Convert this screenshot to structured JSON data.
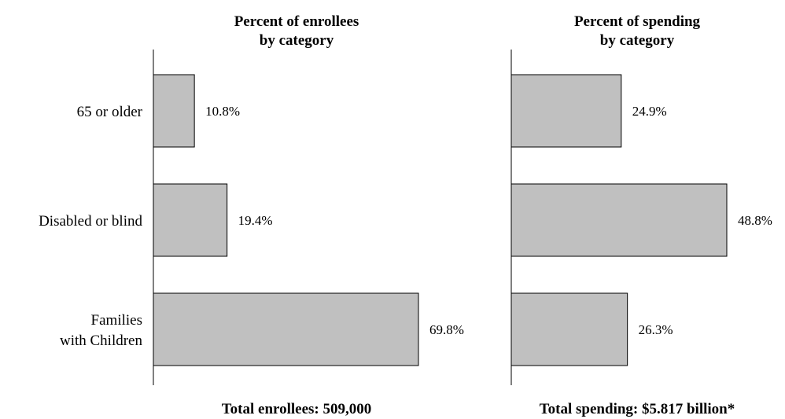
{
  "chart_data": [
    {
      "type": "bar",
      "orientation": "horizontal",
      "title_lines": [
        "Percent of enrollees",
        "by category"
      ],
      "categories": [
        [
          "65 or older"
        ],
        [
          "Disabled or blind"
        ],
        [
          "Families",
          "with Children"
        ]
      ],
      "values": [
        10.8,
        19.4,
        69.8
      ],
      "value_labels": [
        "10.8%",
        "19.4%",
        "69.8%"
      ],
      "footer": "Total enrollees: 509,000",
      "xlim": [
        0,
        80
      ]
    },
    {
      "type": "bar",
      "orientation": "horizontal",
      "title_lines": [
        "Percent of spending",
        "by category"
      ],
      "categories": [
        [
          "65 or older"
        ],
        [
          "Disabled or blind"
        ],
        [
          "Families",
          "with Children"
        ]
      ],
      "values": [
        24.9,
        48.8,
        26.3
      ],
      "value_labels": [
        "24.9%",
        "48.8%",
        "26.3%"
      ],
      "footer": "Total spending: $5.817 billion*",
      "xlim": [
        0,
        60
      ]
    }
  ]
}
